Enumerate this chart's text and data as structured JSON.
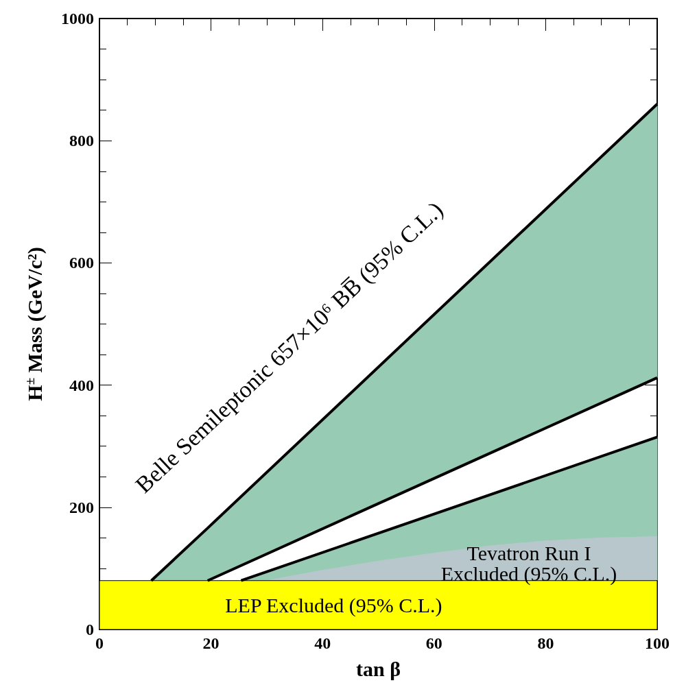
{
  "chart_data": {
    "type": "line",
    "xlabel": "tan β",
    "ylabel": "H$^{±}$ Mass (GeV/c²)",
    "xlim": [
      0,
      100
    ],
    "xticks": [
      0,
      20,
      40,
      60,
      80,
      100
    ],
    "ylim": [
      0,
      1000
    ],
    "yticks": [
      0,
      200,
      400,
      600,
      800,
      1000
    ],
    "series": [
      {
        "color": "#000000",
        "x": [
          9.3,
          19.4,
          100
        ],
        "values": [
          80,
          166,
          860
        ],
        "lower": [
          80,
          80,
          412
        ],
        "upper": [
          80,
          166,
          860
        ]
      },
      {
        "color": "#000000",
        "x": [
          19.4,
          100
        ],
        "values": [
          80,
          412
        ]
      },
      {
        "color": "#000000",
        "x": [
          25.4,
          100
        ],
        "values": [
          80,
          315
        ],
        "lower": [
          80,
          80
        ],
        "upper": [
          80,
          315
        ]
      },
      {
        "type": "area",
        "color": "#b8c7cc",
        "x": [
          30,
          40,
          50,
          60,
          70,
          80,
          90,
          100
        ],
        "values": [
          80,
          97,
          112,
          125,
          137,
          145,
          150,
          152
        ]
      }
    ],
    "bands": [
      {
        "axis": "y",
        "from": 0,
        "to": 80,
        "label": "LEP Excluded (95% C.L.)",
        "color": "#ffff00"
      }
    ],
    "annotations": [
      "Belle Semileptonic 657×10⁶ BB̅ (95% C.L.)",
      "Tevatron Run I\nExcluded (95% C.L.)"
    ]
  }
}
